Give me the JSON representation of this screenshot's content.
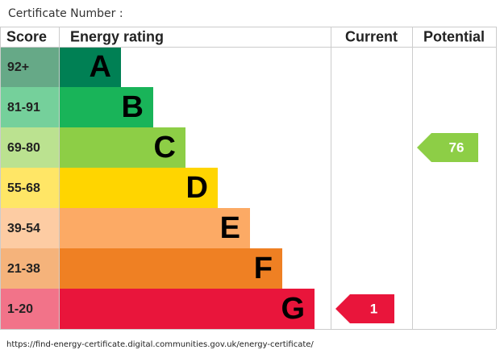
{
  "header": {
    "title": "Certificate Number :"
  },
  "table": {
    "columns": [
      "Score",
      "Energy rating",
      "Current",
      "Potential"
    ],
    "bands": [
      {
        "score": "92+",
        "letter": "A",
        "color": "#008054",
        "cell_color": "#66a987"
      },
      {
        "score": "81-91",
        "letter": "B",
        "color": "#19b459",
        "cell_color": "#75d09b"
      },
      {
        "score": "69-80",
        "letter": "C",
        "color": "#8dce46",
        "cell_color": "#bbe290"
      },
      {
        "score": "55-68",
        "letter": "D",
        "color": "#ffd500",
        "cell_color": "#ffe666"
      },
      {
        "score": "39-54",
        "letter": "E",
        "color": "#fcaa65",
        "cell_color": "#fdcca3"
      },
      {
        "score": "21-38",
        "letter": "F",
        "color": "#ef8023",
        "cell_color": "#f5b37b"
      },
      {
        "score": "1-20",
        "letter": "G",
        "color": "#e9153b",
        "cell_color": "#f27389"
      }
    ],
    "current": 1,
    "potential": 76
  },
  "footer": {
    "url": "https://find-energy-certificate.digital.communities.gov.uk/energy-certificate/"
  }
}
